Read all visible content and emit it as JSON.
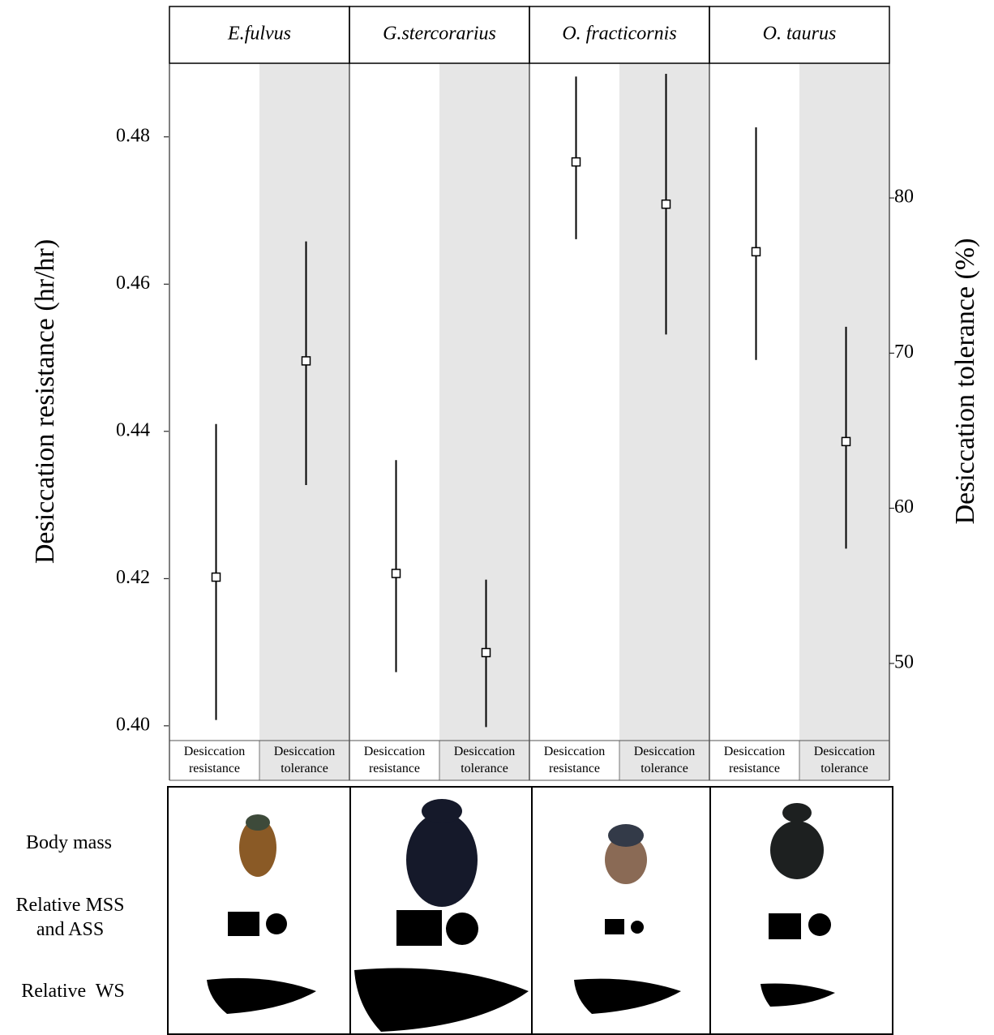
{
  "chart_data": {
    "type": "errorpoint",
    "categories": [
      "E.fulvus",
      "G.stercorarius",
      "O. fracticornis",
      "O. taurus"
    ],
    "series": [
      {
        "name": "Desiccation resistance",
        "color": "#000000",
        "values": [
          0.4202,
          0.4207,
          0.4766,
          0.4644
        ],
        "lower": [
          0.4008,
          0.4073,
          0.4661,
          0.4497
        ],
        "upper": [
          0.441,
          0.4361,
          0.4882,
          0.4813
        ]
      },
      {
        "name": "Desiccation tolerance",
        "color": "#000000",
        "axis": "y2",
        "values": [
          69.5,
          50.7,
          79.6,
          64.3
        ],
        "lower": [
          61.5,
          45.9,
          71.2,
          57.4
        ],
        "upper": [
          77.2,
          55.4,
          88.0,
          71.7
        ]
      }
    ],
    "ylabel": "Desiccation resistance (hr/hr)",
    "y2label": "Desiccation tolerance (%)",
    "ylim": [
      0.398,
      0.49
    ],
    "yticks": [
      {
        "value": 0.4,
        "label": "0.40"
      },
      0.42,
      0.44,
      0.46,
      0.48
    ],
    "y2lim": [
      45.03,
      88.68
    ],
    "y2ticks": [
      50,
      60,
      70,
      80
    ]
  },
  "lower_panel": {
    "row_labels": [
      "Body mass",
      "Relative MSS and ASS",
      "Relative  WS"
    ]
  }
}
